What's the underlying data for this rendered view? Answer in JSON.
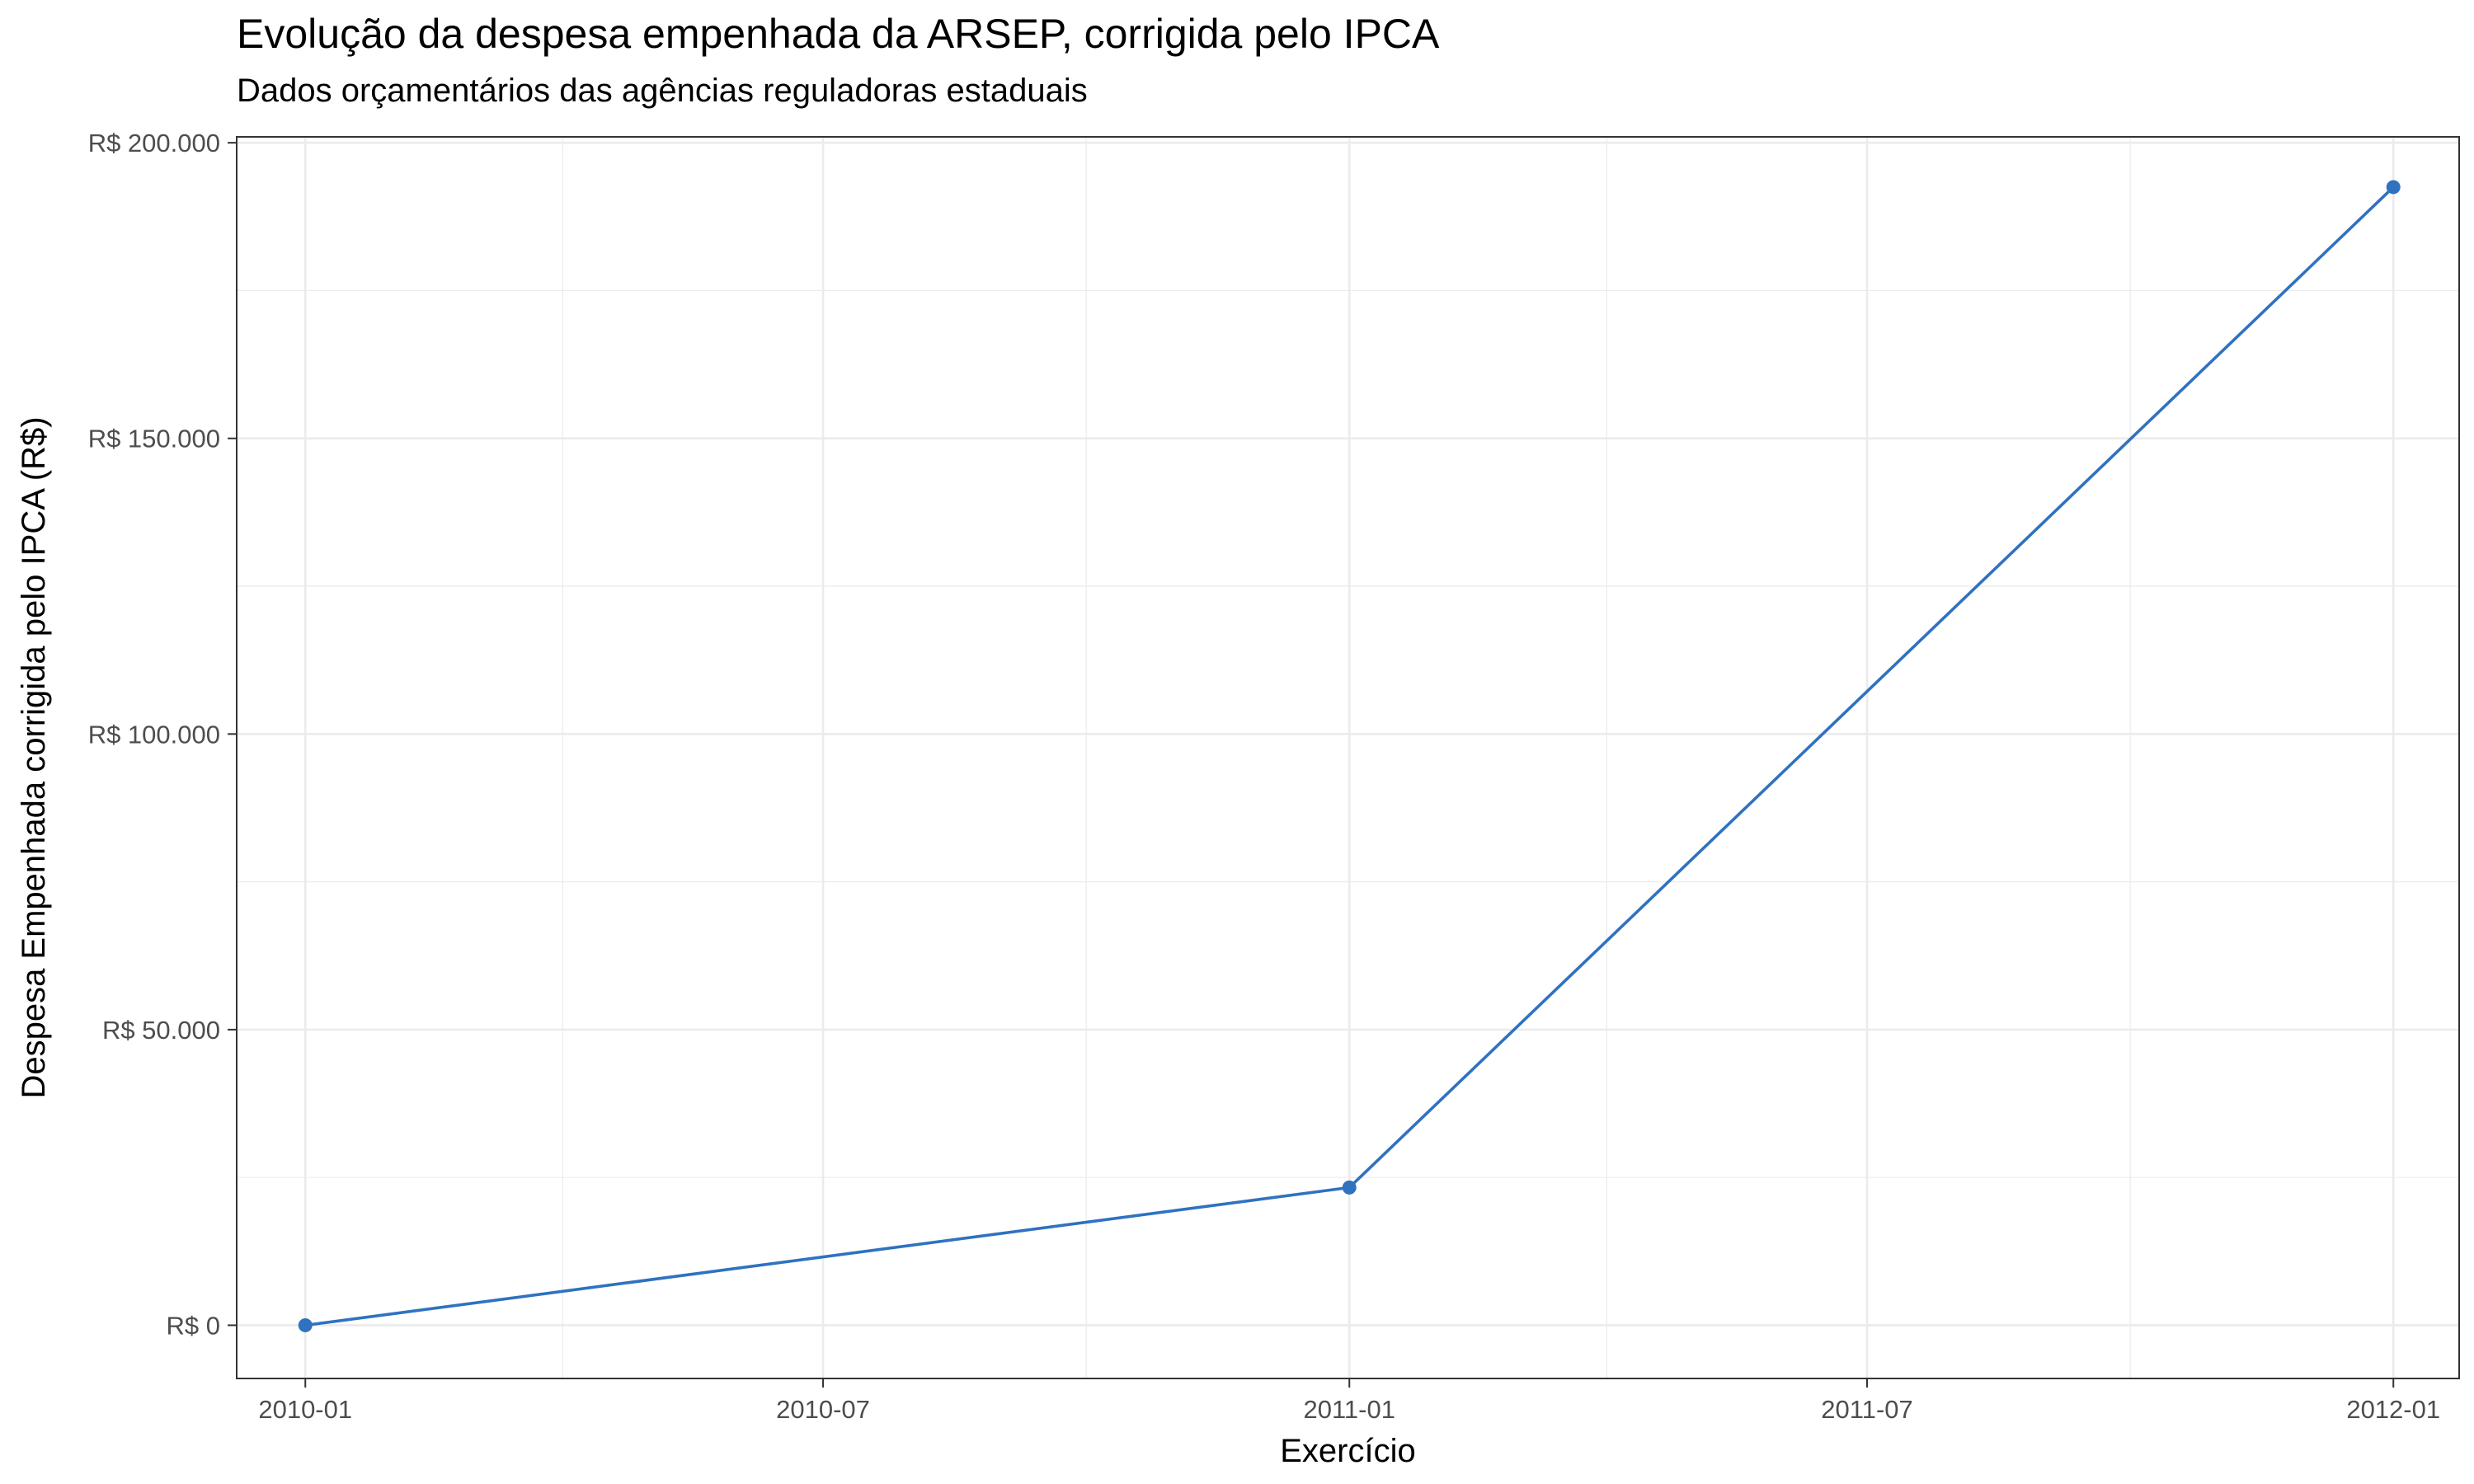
{
  "chart_data": {
    "type": "line",
    "title": "Evolução da despesa empenhada da ARSEP, corrigida pelo IPCA",
    "subtitle": "Dados orçamentários das agências reguladoras estaduais",
    "xlabel": "Exercício",
    "ylabel": "Despesa Empenhada corrigida pelo IPCA (R$)",
    "x": [
      "2010-01-01",
      "2011-01-01",
      "2012-01-01"
    ],
    "values": [
      0,
      23300,
      192500
    ],
    "xlim": [
      "2009-12-08",
      "2012-01-24"
    ],
    "ylim": [
      -9000,
      201000
    ],
    "x_ticks": [
      {
        "date": "2010-01-01",
        "label": "2010-01"
      },
      {
        "date": "2010-07-01",
        "label": "2010-07"
      },
      {
        "date": "2011-01-01",
        "label": "2011-01"
      },
      {
        "date": "2011-07-01",
        "label": "2011-07"
      },
      {
        "date": "2012-01-01",
        "label": "2012-01"
      }
    ],
    "x_minor_ticks": [
      "2010-04-01",
      "2010-10-01",
      "2011-04-01",
      "2011-10-01"
    ],
    "y_ticks": [
      {
        "value": 0,
        "label": "R$ 0"
      },
      {
        "value": 50000,
        "label": "R$ 50.000"
      },
      {
        "value": 100000,
        "label": "R$ 100.000"
      },
      {
        "value": 150000,
        "label": "R$ 150.000"
      },
      {
        "value": 200000,
        "label": "R$ 200.000"
      }
    ],
    "y_minor_ticks": [
      25000,
      75000,
      125000,
      175000
    ],
    "grid": true,
    "line_color": "#2f72c0",
    "panel_border_color": "#333333",
    "grid_color": "#ebebeb"
  }
}
